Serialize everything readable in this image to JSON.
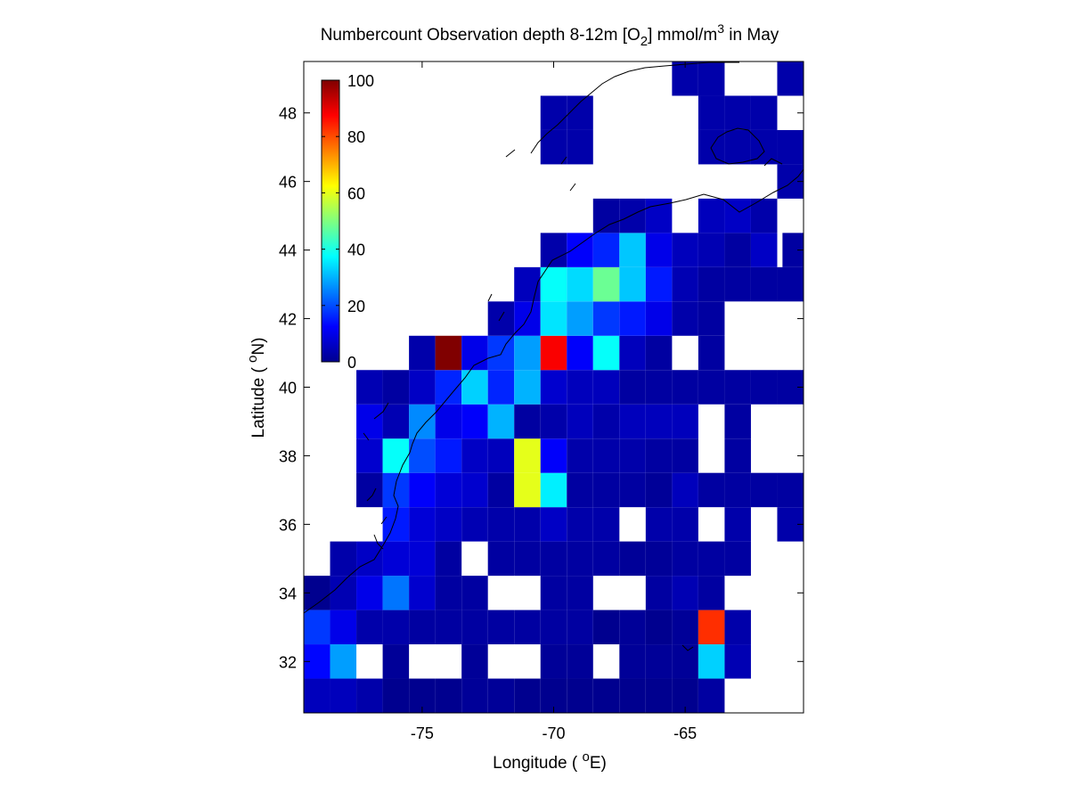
{
  "chart_data": {
    "type": "heatmap",
    "title": {
      "part1": "Numbercount Observation depth 8-12m [O",
      "sub": "2",
      "part2": "] mmol/m",
      "sup": "3",
      "part3": " in May"
    },
    "xlabel": {
      "prefix": "Longitude ( ",
      "sup": "o",
      "suffix": "E)"
    },
    "ylabel": {
      "prefix": "Latitude ( ",
      "sup": "o",
      "suffix": "N)"
    },
    "xlim": [
      -79.5,
      -60.5
    ],
    "ylim": [
      30.5,
      49.5
    ],
    "xticks": [
      -75,
      -70,
      -65
    ],
    "yticks": [
      32,
      34,
      36,
      38,
      40,
      42,
      44,
      46,
      48
    ],
    "colormap": "jet",
    "clim": [
      0,
      100
    ],
    "colorbar": {
      "ticks": [
        0,
        20,
        40,
        60,
        80,
        100
      ],
      "placement": "inside-top-left"
    },
    "cell_size_degrees": 1,
    "grid": false,
    "cells": [
      [
        -79,
        31,
        5
      ],
      [
        -78,
        31,
        5
      ],
      [
        -77,
        31,
        3
      ],
      [
        -76,
        31,
        0
      ],
      [
        -75,
        31,
        0
      ],
      [
        -74,
        31,
        0
      ],
      [
        -73,
        31,
        1
      ],
      [
        -72,
        31,
        1
      ],
      [
        -71,
        31,
        0
      ],
      [
        -70,
        31,
        0
      ],
      [
        -69,
        31,
        0
      ],
      [
        -68,
        31,
        0
      ],
      [
        -67,
        31,
        0
      ],
      [
        -66,
        31,
        0
      ],
      [
        -65,
        31,
        0
      ],
      [
        -64,
        31,
        2
      ],
      [
        -79,
        32,
        13
      ],
      [
        -78,
        32,
        28
      ],
      [
        -76,
        32,
        1
      ],
      [
        -73,
        32,
        1
      ],
      [
        -70,
        32,
        1
      ],
      [
        -69,
        32,
        1
      ],
      [
        -67,
        32,
        1
      ],
      [
        -66,
        32,
        1
      ],
      [
        -65,
        32,
        1
      ],
      [
        -64,
        32,
        33
      ],
      [
        -63,
        32,
        4
      ],
      [
        -79,
        33,
        18
      ],
      [
        -78,
        33,
        10
      ],
      [
        -77,
        33,
        3
      ],
      [
        -76,
        33,
        3
      ],
      [
        -75,
        33,
        2
      ],
      [
        -74,
        33,
        2
      ],
      [
        -73,
        33,
        2
      ],
      [
        -72,
        33,
        2
      ],
      [
        -71,
        33,
        2
      ],
      [
        -70,
        33,
        2
      ],
      [
        -69,
        33,
        2
      ],
      [
        -68,
        33,
        0
      ],
      [
        -67,
        33,
        1
      ],
      [
        -66,
        33,
        0
      ],
      [
        -65,
        33,
        1
      ],
      [
        -64,
        33,
        83
      ],
      [
        -63,
        33,
        3
      ],
      [
        -79,
        34,
        0
      ],
      [
        -78,
        34,
        4
      ],
      [
        -77,
        34,
        10
      ],
      [
        -76,
        34,
        24
      ],
      [
        -75,
        34,
        7
      ],
      [
        -74,
        34,
        2
      ],
      [
        -73,
        34,
        2
      ],
      [
        -70,
        34,
        2
      ],
      [
        -69,
        34,
        2
      ],
      [
        -66,
        34,
        2
      ],
      [
        -65,
        34,
        4
      ],
      [
        -64,
        34,
        2
      ],
      [
        -78,
        35,
        3
      ],
      [
        -77,
        35,
        6
      ],
      [
        -76,
        35,
        8
      ],
      [
        -75,
        35,
        8
      ],
      [
        -74,
        35,
        2
      ],
      [
        -72,
        35,
        2
      ],
      [
        -71,
        35,
        2
      ],
      [
        -70,
        35,
        2
      ],
      [
        -69,
        35,
        2
      ],
      [
        -68,
        35,
        2
      ],
      [
        -67,
        35,
        1
      ],
      [
        -66,
        35,
        1
      ],
      [
        -65,
        35,
        2
      ],
      [
        -64,
        35,
        2
      ],
      [
        -63,
        35,
        2
      ],
      [
        -76,
        36,
        15
      ],
      [
        -75,
        36,
        8
      ],
      [
        -74,
        36,
        6
      ],
      [
        -73,
        36,
        4
      ],
      [
        -72,
        36,
        3
      ],
      [
        -71,
        36,
        3
      ],
      [
        -70,
        36,
        6
      ],
      [
        -69,
        36,
        3
      ],
      [
        -68,
        36,
        3
      ],
      [
        -66,
        36,
        3
      ],
      [
        -65,
        36,
        3
      ],
      [
        -63,
        36,
        3
      ],
      [
        -61,
        36,
        3
      ],
      [
        -77,
        37,
        2
      ],
      [
        -76,
        37,
        18
      ],
      [
        -75,
        37,
        12
      ],
      [
        -74,
        37,
        8
      ],
      [
        -73,
        37,
        7
      ],
      [
        -72,
        37,
        2
      ],
      [
        -71,
        37,
        60
      ],
      [
        -70,
        37,
        36
      ],
      [
        -69,
        37,
        2
      ],
      [
        -68,
        37,
        2
      ],
      [
        -67,
        37,
        2
      ],
      [
        -66,
        37,
        1
      ],
      [
        -65,
        37,
        5
      ],
      [
        -64,
        37,
        2
      ],
      [
        -63,
        37,
        2
      ],
      [
        -62,
        37,
        2
      ],
      [
        -61,
        37,
        2
      ],
      [
        -77,
        38,
        7
      ],
      [
        -76,
        38,
        38
      ],
      [
        -75,
        38,
        20
      ],
      [
        -74,
        38,
        15
      ],
      [
        -73,
        38,
        6
      ],
      [
        -72,
        38,
        5
      ],
      [
        -71,
        38,
        60
      ],
      [
        -70,
        38,
        12
      ],
      [
        -69,
        38,
        3
      ],
      [
        -68,
        38,
        3
      ],
      [
        -67,
        38,
        3
      ],
      [
        -66,
        38,
        2
      ],
      [
        -65,
        38,
        2
      ],
      [
        -63,
        38,
        2
      ],
      [
        -77,
        39,
        10
      ],
      [
        -76,
        39,
        4
      ],
      [
        -75,
        39,
        26
      ],
      [
        -74,
        39,
        10
      ],
      [
        -73,
        39,
        12
      ],
      [
        -72,
        39,
        30
      ],
      [
        -71,
        39,
        2
      ],
      [
        -70,
        39,
        3
      ],
      [
        -69,
        39,
        5
      ],
      [
        -68,
        39,
        3
      ],
      [
        -67,
        39,
        5
      ],
      [
        -66,
        39,
        5
      ],
      [
        -65,
        39,
        5
      ],
      [
        -63,
        39,
        2
      ],
      [
        -77,
        40,
        4
      ],
      [
        -76,
        40,
        2
      ],
      [
        -75,
        40,
        6
      ],
      [
        -74,
        40,
        16
      ],
      [
        -73,
        40,
        33
      ],
      [
        -72,
        40,
        16
      ],
      [
        -71,
        40,
        30
      ],
      [
        -70,
        40,
        7
      ],
      [
        -69,
        40,
        5
      ],
      [
        -68,
        40,
        5
      ],
      [
        -67,
        40,
        2
      ],
      [
        -66,
        40,
        2
      ],
      [
        -65,
        40,
        2
      ],
      [
        -64,
        40,
        2
      ],
      [
        -63,
        40,
        2
      ],
      [
        -62,
        40,
        2
      ],
      [
        -61,
        40,
        2
      ],
      [
        -75,
        41,
        3
      ],
      [
        -74,
        41,
        100
      ],
      [
        -73,
        41,
        10
      ],
      [
        -72,
        41,
        18
      ],
      [
        -71,
        41,
        28
      ],
      [
        -70,
        41,
        88
      ],
      [
        -69,
        41,
        12
      ],
      [
        -68,
        41,
        38
      ],
      [
        -67,
        41,
        5
      ],
      [
        -66,
        41,
        2
      ],
      [
        -64,
        41,
        2
      ],
      [
        -72,
        42,
        3
      ],
      [
        -71,
        42,
        10
      ],
      [
        -70,
        42,
        35
      ],
      [
        -69,
        42,
        28
      ],
      [
        -68,
        42,
        18
      ],
      [
        -67,
        42,
        15
      ],
      [
        -66,
        42,
        10
      ],
      [
        -65,
        42,
        3
      ],
      [
        -64,
        42,
        2
      ],
      [
        -71,
        43,
        5
      ],
      [
        -70,
        43,
        38
      ],
      [
        -69,
        43,
        34
      ],
      [
        -68,
        43,
        48
      ],
      [
        -67,
        43,
        32
      ],
      [
        -66,
        43,
        15
      ],
      [
        -65,
        43,
        4
      ],
      [
        -64,
        43,
        2
      ],
      [
        -63,
        43,
        2
      ],
      [
        -62,
        43,
        2
      ],
      [
        -61,
        43,
        2
      ],
      [
        -70,
        44,
        3
      ],
      [
        -69,
        44,
        12
      ],
      [
        -68,
        44,
        16
      ],
      [
        -67,
        44,
        32
      ],
      [
        -66,
        44,
        10
      ],
      [
        -65,
        44,
        5
      ],
      [
        -64,
        44,
        4
      ],
      [
        -63,
        44,
        2
      ],
      [
        -62,
        44,
        6
      ],
      [
        -60.8,
        44,
        2
      ],
      [
        -68,
        45,
        2
      ],
      [
        -67,
        45,
        3
      ],
      [
        -66,
        45,
        6
      ],
      [
        -64,
        45,
        5
      ],
      [
        -63,
        45,
        6
      ],
      [
        -62,
        45,
        3
      ],
      [
        -61,
        46,
        3
      ],
      [
        -70,
        47,
        3
      ],
      [
        -69,
        47,
        3
      ],
      [
        -64,
        47,
        3
      ],
      [
        -63,
        47,
        3
      ],
      [
        -62,
        47,
        3
      ],
      [
        -61,
        47,
        3
      ],
      [
        -70,
        48,
        3
      ],
      [
        -69,
        48,
        3
      ],
      [
        -64,
        48,
        3
      ],
      [
        -63,
        48,
        3
      ],
      [
        -62,
        48,
        3
      ],
      [
        -65,
        49,
        3
      ],
      [
        -64,
        49,
        3
      ],
      [
        -61,
        49,
        3
      ]
    ]
  }
}
